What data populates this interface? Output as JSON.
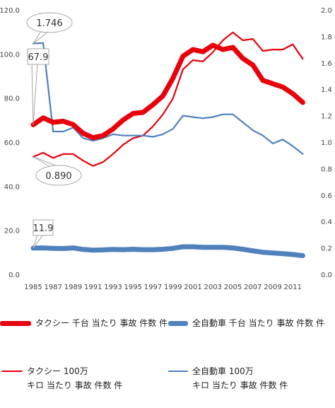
{
  "chart_data": {
    "type": "line",
    "x": [
      1985,
      1986,
      1987,
      1988,
      1989,
      1990,
      1991,
      1992,
      1993,
      1994,
      1995,
      1996,
      1997,
      1998,
      1999,
      2000,
      2001,
      2002,
      2003,
      2004,
      2005,
      2006,
      2007,
      2008,
      2009,
      2010,
      2011,
      2012
    ],
    "x_tick_labels": [
      "1985",
      "1987",
      "1989",
      "1991",
      "1993",
      "1995",
      "1997",
      "1999",
      "2001",
      "2003",
      "2005",
      "2007",
      "2009",
      "2011"
    ],
    "y_left": {
      "ylim": [
        0,
        120
      ],
      "ticks": [
        "0.0",
        "20.0",
        "40.0",
        "60.0",
        "80.0",
        "100.0",
        "120.0"
      ]
    },
    "y_right": {
      "ylim": [
        0,
        2.0
      ],
      "ticks": [
        "0.0",
        "0.2",
        "0.4",
        "0.6",
        "0.8",
        "1.0",
        "1.2",
        "1.4",
        "1.6",
        "1.8",
        "2.0"
      ]
    },
    "series": [
      {
        "name": "タクシー 千台 当たり 事故 件数 件",
        "axis": "left",
        "color": "#e8000b",
        "thick": true,
        "values": [
          67.9,
          71,
          69,
          69.5,
          68,
          64,
          62,
          63,
          66,
          70,
          73,
          73.5,
          77,
          81,
          89,
          99,
          102,
          101,
          104,
          102,
          103,
          98,
          95,
          88,
          86.5,
          85,
          82,
          78
        ]
      },
      {
        "name": "全自動車 千台 当たり 事故 件数 件",
        "axis": "left",
        "color": "#4f81bd",
        "thick": true,
        "values": [
          11.9,
          12.0,
          11.8,
          11.7,
          12.0,
          11.3,
          11.0,
          11.1,
          11.3,
          11.2,
          11.4,
          11.2,
          11.2,
          11.4,
          11.8,
          12.5,
          12.5,
          12.3,
          12.3,
          12.3,
          12.0,
          11.4,
          10.7,
          10.0,
          9.7,
          9.4,
          9.0,
          8.5
        ]
      },
      {
        "name": "タクシー 100万\nキロ 当たり 事故 件数 件",
        "axis": "right",
        "color": "#e8000b",
        "thick": false,
        "values": [
          0.89,
          0.92,
          0.88,
          0.91,
          0.91,
          0.86,
          0.82,
          0.85,
          0.91,
          0.98,
          1.03,
          1.05,
          1.12,
          1.21,
          1.33,
          1.55,
          1.62,
          1.61,
          1.68,
          1.77,
          1.83,
          1.77,
          1.78,
          1.69,
          1.7,
          1.7,
          1.74,
          1.63
        ]
      },
      {
        "name": "全自動車 100万\nキロ 当たり 事故 件数 件",
        "axis": "right",
        "color": "#4f81bd",
        "thick": false,
        "values": [
          1.746,
          1.75,
          1.08,
          1.08,
          1.11,
          1.03,
          1.01,
          1.03,
          1.06,
          1.05,
          1.05,
          1.05,
          1.04,
          1.06,
          1.1,
          1.2,
          1.19,
          1.18,
          1.19,
          1.21,
          1.21,
          1.15,
          1.09,
          1.05,
          0.99,
          1.02,
          0.97,
          0.91
        ]
      }
    ],
    "annotations": [
      {
        "text": "1.746",
        "series": 3,
        "index": 0
      },
      {
        "text": "67.9",
        "series": 0,
        "index": 0
      },
      {
        "text": "0.890",
        "series": 2,
        "index": 0
      },
      {
        "text": "11.9",
        "series": 1,
        "index": 0
      }
    ],
    "grid": false,
    "legend_position": "bottom"
  }
}
